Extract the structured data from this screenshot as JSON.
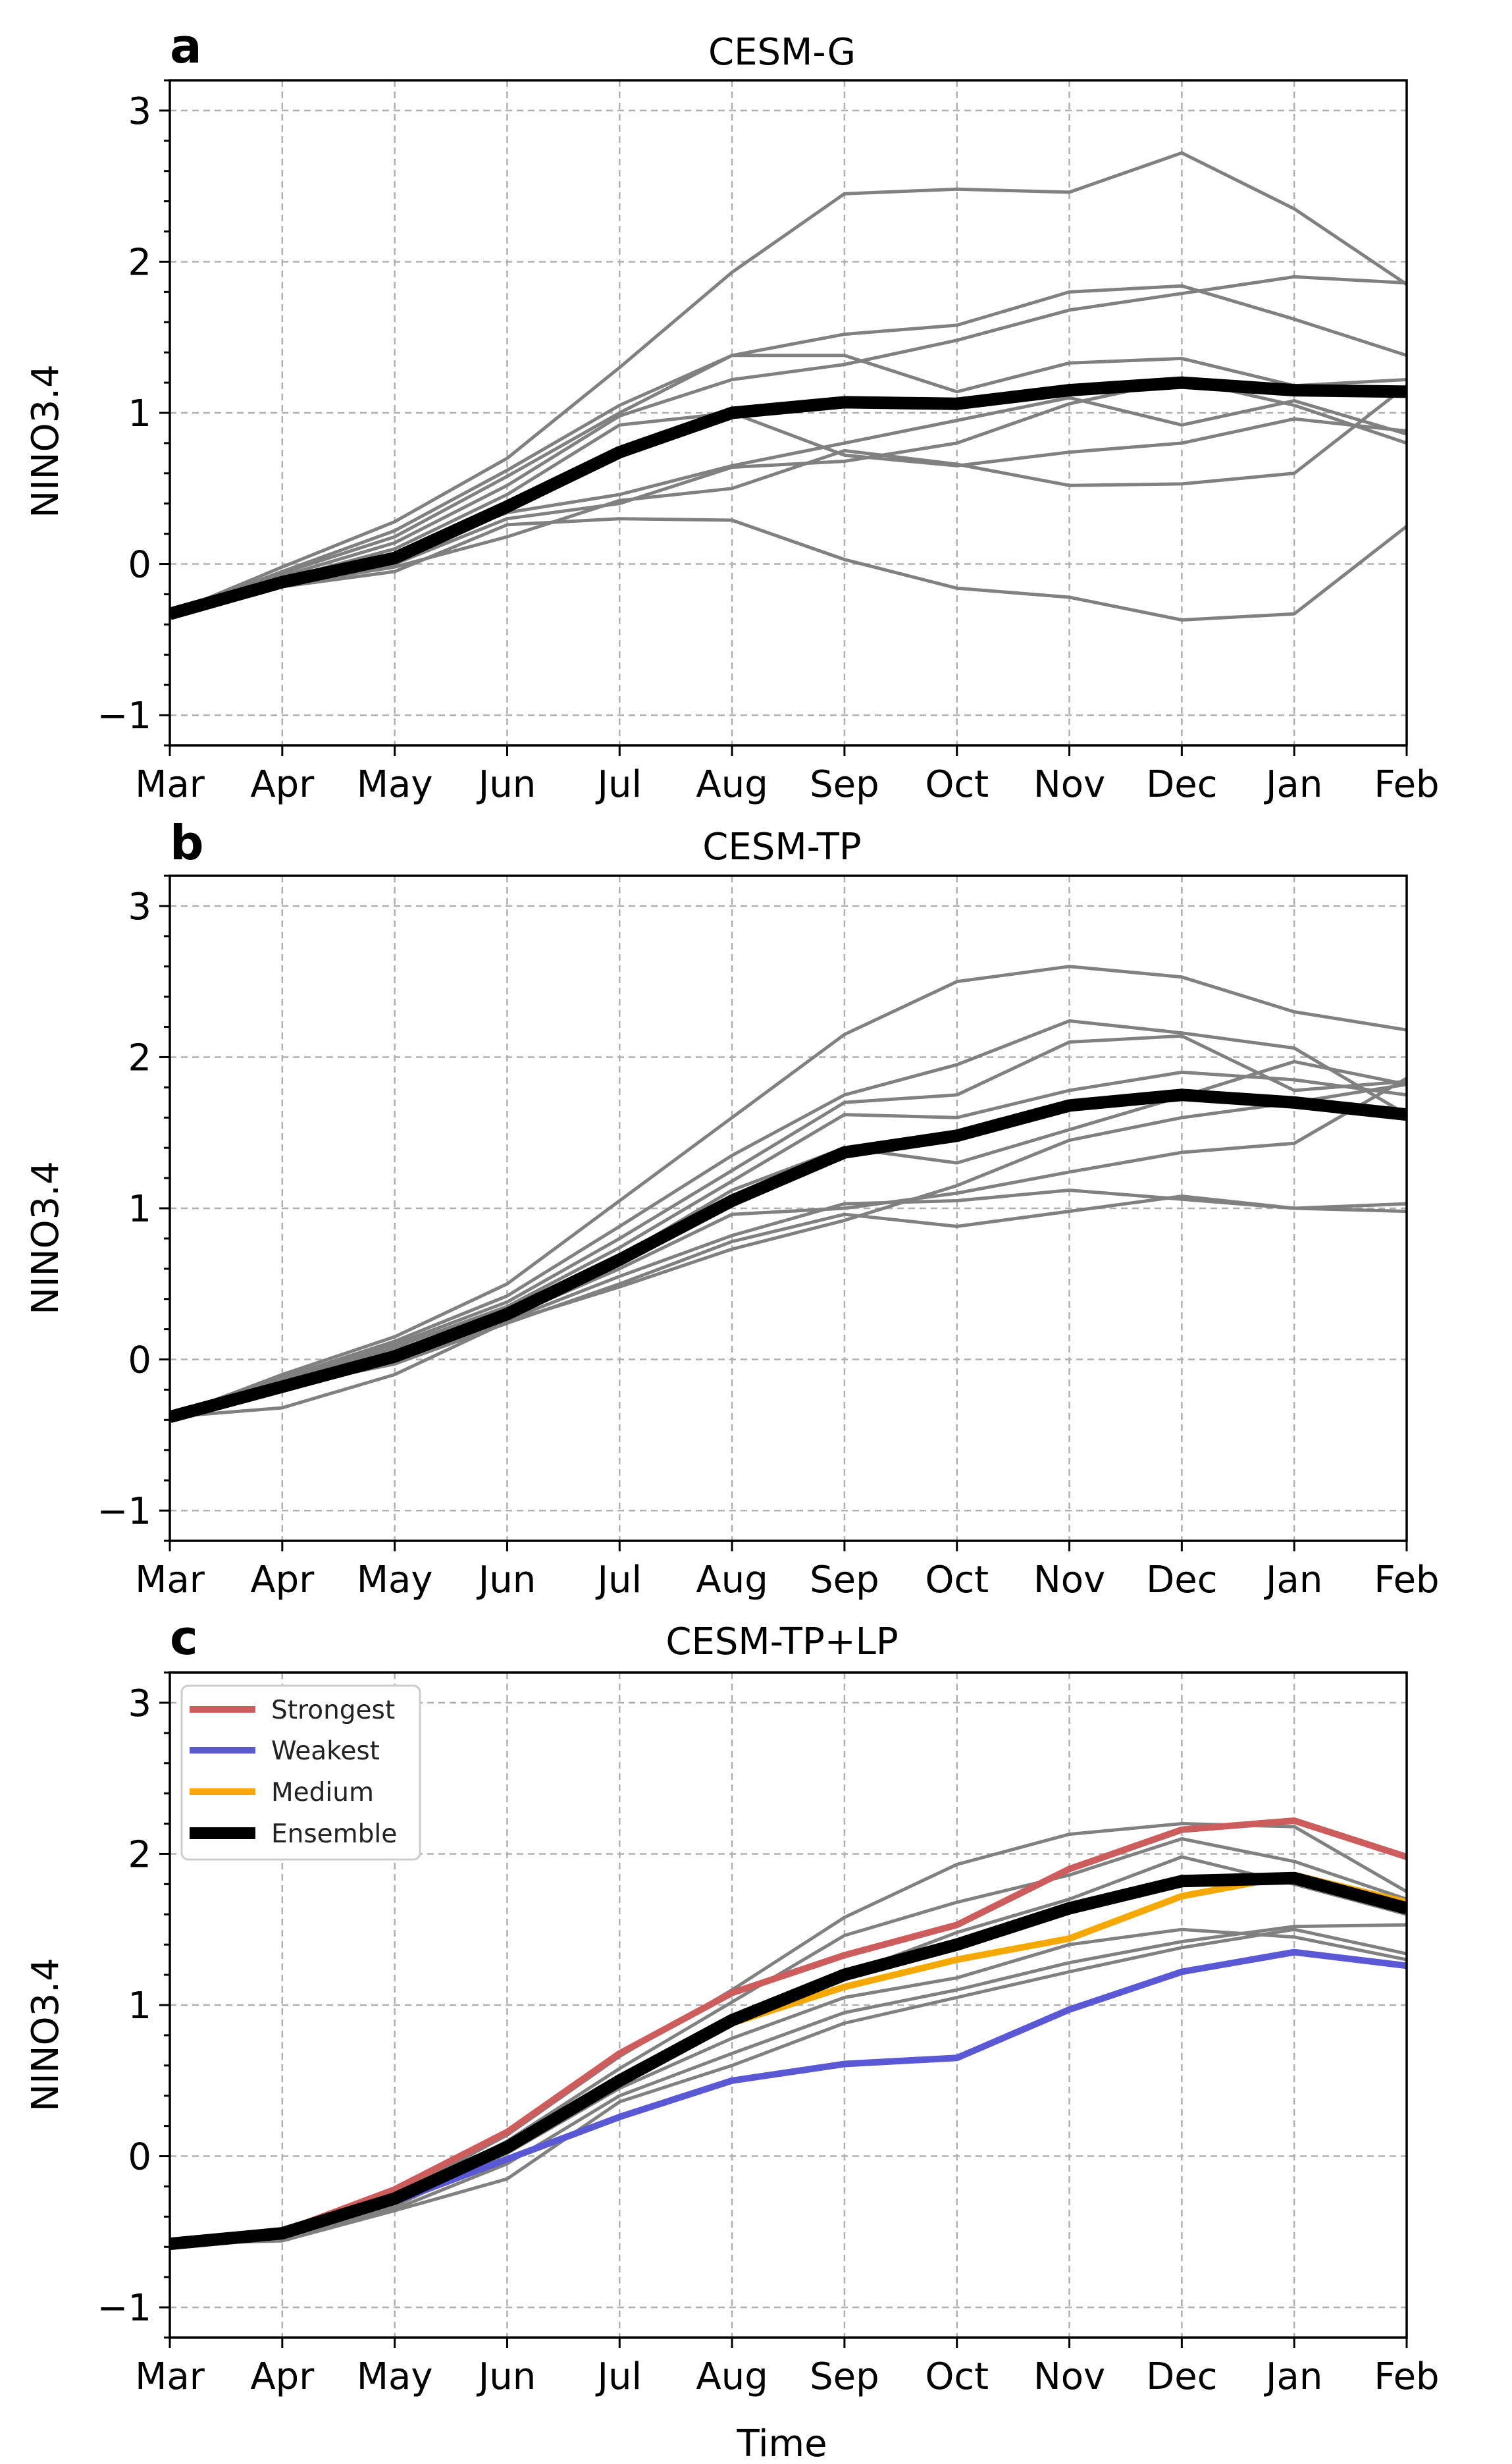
{
  "colors": {
    "member": "#808080",
    "ensemble": "#000000",
    "strongest": "#cd5c5c",
    "weakest": "#5b58d6",
    "medium": "#f5a800",
    "grid": "#b0b0b0"
  },
  "chart_data": [
    {
      "type": "line",
      "panel_letter": "a",
      "title": "CESM-G",
      "xlabel": "",
      "ylabel": "NINO3.4",
      "ylim": [
        -1.2,
        3.2
      ],
      "yticks": [
        "3",
        "2",
        "1",
        "0",
        "−1"
      ],
      "categories": [
        "Mar",
        "Apr",
        "May",
        "Jun",
        "Jul",
        "Aug",
        "Sep",
        "Oct",
        "Nov",
        "Dec",
        "Jan",
        "Feb"
      ],
      "grid": true,
      "members": [
        [
          -0.33,
          -0.02,
          0.28,
          0.7,
          1.3,
          1.93,
          2.45,
          2.48,
          2.46,
          2.72,
          2.35,
          1.85
        ],
        [
          -0.33,
          -0.05,
          0.22,
          0.62,
          1.05,
          1.38,
          1.52,
          1.58,
          1.8,
          1.84,
          1.62,
          1.38
        ],
        [
          -0.33,
          -0.06,
          0.18,
          0.58,
          1.0,
          1.38,
          1.38,
          1.14,
          1.33,
          1.36,
          1.18,
          1.22
        ],
        [
          -0.33,
          -0.08,
          0.14,
          0.52,
          0.98,
          1.22,
          1.32,
          1.48,
          1.68,
          1.79,
          1.9,
          1.86
        ],
        [
          -0.33,
          -0.1,
          0.1,
          0.46,
          0.92,
          1.0,
          0.72,
          0.65,
          0.74,
          0.8,
          0.96,
          0.88
        ],
        [
          -0.33,
          -0.12,
          0.06,
          0.34,
          0.46,
          0.65,
          0.8,
          0.95,
          1.1,
          0.92,
          1.08,
          0.86
        ],
        [
          -0.33,
          -0.13,
          0.0,
          0.3,
          0.4,
          0.64,
          0.68,
          0.8,
          1.06,
          1.22,
          1.05,
          0.8
        ],
        [
          -0.33,
          -0.14,
          -0.02,
          0.18,
          0.42,
          0.5,
          0.75,
          0.66,
          0.52,
          0.53,
          0.6,
          1.18
        ],
        [
          -0.33,
          -0.15,
          -0.05,
          0.26,
          0.3,
          0.29,
          0.03,
          -0.16,
          -0.22,
          -0.37,
          -0.33,
          0.25
        ]
      ],
      "series": [
        {
          "name": "Ensemble",
          "values": [
            -0.33,
            -0.12,
            0.04,
            0.38,
            0.74,
            1.0,
            1.07,
            1.06,
            1.15,
            1.2,
            1.15,
            1.14
          ]
        }
      ]
    },
    {
      "type": "line",
      "panel_letter": "b",
      "title": "CESM-TP",
      "xlabel": "",
      "ylabel": "NINO3.4",
      "ylim": [
        -1.2,
        3.2
      ],
      "yticks": [
        "3",
        "2",
        "1",
        "0",
        "−1"
      ],
      "categories": [
        "Mar",
        "Apr",
        "May",
        "Jun",
        "Jul",
        "Aug",
        "Sep",
        "Oct",
        "Nov",
        "Dec",
        "Jan",
        "Feb"
      ],
      "grid": true,
      "members": [
        [
          -0.38,
          -0.1,
          0.15,
          0.5,
          1.05,
          1.6,
          2.15,
          2.5,
          2.6,
          2.53,
          2.3,
          2.18
        ],
        [
          -0.38,
          -0.12,
          0.12,
          0.42,
          0.88,
          1.35,
          1.75,
          1.95,
          2.24,
          2.16,
          2.06,
          1.62
        ],
        [
          -0.38,
          -0.13,
          0.1,
          0.38,
          0.8,
          1.25,
          1.7,
          1.75,
          2.1,
          2.14,
          1.78,
          1.84
        ],
        [
          -0.38,
          -0.14,
          0.08,
          0.35,
          0.74,
          1.18,
          1.62,
          1.6,
          1.78,
          1.9,
          1.85,
          1.75
        ],
        [
          -0.38,
          -0.15,
          0.06,
          0.3,
          0.68,
          1.12,
          1.4,
          1.3,
          1.52,
          1.74,
          1.97,
          1.82
        ],
        [
          -0.38,
          -0.16,
          0.03,
          0.28,
          0.6,
          0.96,
          1.0,
          1.1,
          1.24,
          1.37,
          1.43,
          1.86
        ],
        [
          -0.38,
          -0.17,
          0.0,
          0.26,
          0.55,
          0.82,
          1.03,
          1.05,
          1.12,
          1.06,
          1.0,
          1.03
        ],
        [
          -0.38,
          -0.18,
          -0.03,
          0.24,
          0.5,
          0.78,
          0.96,
          0.88,
          0.98,
          1.08,
          1.0,
          0.98
        ],
        [
          -0.38,
          -0.32,
          -0.1,
          0.25,
          0.48,
          0.73,
          0.92,
          1.15,
          1.45,
          1.6,
          1.7,
          1.82
        ]
      ],
      "series": [
        {
          "name": "Ensemble",
          "values": [
            -0.38,
            -0.18,
            0.02,
            0.3,
            0.66,
            1.05,
            1.37,
            1.48,
            1.68,
            1.75,
            1.7,
            1.62
          ]
        }
      ]
    },
    {
      "type": "line",
      "panel_letter": "c",
      "title": "CESM-TP+LP",
      "xlabel": "Time",
      "ylabel": "NINO3.4",
      "ylim": [
        -1.2,
        3.2
      ],
      "yticks": [
        "3",
        "2",
        "1",
        "0",
        "−1"
      ],
      "categories": [
        "Mar",
        "Apr",
        "May",
        "Jun",
        "Jul",
        "Aug",
        "Sep",
        "Oct",
        "Nov",
        "Dec",
        "Jan",
        "Feb"
      ],
      "grid": true,
      "legend_position": "top-left",
      "legend": [
        "Strongest",
        "Weakest",
        "Medium",
        "Ensemble"
      ],
      "members": [
        [
          -0.58,
          -0.52,
          -0.26,
          0.14,
          0.66,
          1.1,
          1.58,
          1.93,
          2.13,
          2.2,
          2.18,
          1.75
        ],
        [
          -0.58,
          -0.52,
          -0.28,
          0.1,
          0.58,
          1.02,
          1.46,
          1.68,
          1.86,
          2.1,
          1.95,
          1.7
        ],
        [
          -0.58,
          -0.53,
          -0.3,
          0.06,
          0.52,
          0.9,
          1.2,
          1.48,
          1.7,
          1.98,
          1.8,
          1.6
        ],
        [
          -0.58,
          -0.54,
          -0.33,
          0.02,
          0.45,
          0.78,
          1.05,
          1.18,
          1.4,
          1.5,
          1.45,
          1.3
        ],
        [
          -0.58,
          -0.55,
          -0.35,
          -0.05,
          0.4,
          0.68,
          0.95,
          1.1,
          1.28,
          1.42,
          1.52,
          1.53
        ],
        [
          -0.58,
          -0.56,
          -0.36,
          -0.15,
          0.36,
          0.6,
          0.88,
          1.05,
          1.22,
          1.38,
          1.5,
          1.34
        ]
      ],
      "series": [
        {
          "name": "Strongest",
          "values": [
            -0.58,
            -0.5,
            -0.22,
            0.16,
            0.68,
            1.08,
            1.33,
            1.53,
            1.9,
            2.16,
            2.22,
            1.98
          ]
        },
        {
          "name": "Weakest",
          "values": [
            -0.58,
            -0.5,
            -0.3,
            -0.02,
            0.26,
            0.5,
            0.61,
            0.65,
            0.97,
            1.22,
            1.35,
            1.26
          ]
        },
        {
          "name": "Medium",
          "values": [
            -0.58,
            -0.51,
            -0.27,
            0.08,
            0.52,
            0.88,
            1.12,
            1.3,
            1.44,
            1.72,
            1.86,
            1.68
          ]
        },
        {
          "name": "Ensemble",
          "values": [
            -0.58,
            -0.51,
            -0.28,
            0.06,
            0.5,
            0.9,
            1.2,
            1.4,
            1.64,
            1.82,
            1.84,
            1.64
          ]
        }
      ]
    }
  ]
}
